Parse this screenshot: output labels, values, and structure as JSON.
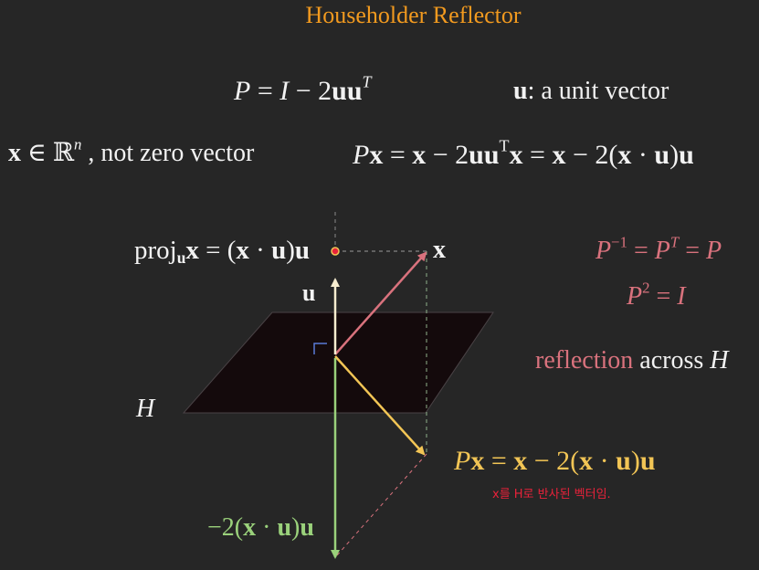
{
  "title": "Householder Reflector",
  "formula": {
    "P": "P",
    "eq_I": " = ",
    "I": "I",
    "minus_2": " − 2",
    "uu": "uu",
    "T": "T"
  },
  "unit_vector": {
    "u": "u",
    "text": ": a unit vector"
  },
  "x_in_rn": {
    "x": "x",
    "elem": " ∈ ",
    "Rn": "ℝ",
    "n": "n",
    "text": " , not zero vector"
  },
  "px_equation": {
    "P": "P",
    "x1": "x",
    "part1": " = ",
    "x2": "x",
    "part2": " − 2",
    "uu": "uu",
    "T": "T",
    "x3": "x",
    "part3": " = ",
    "x4": "x",
    "part4": " − 2(",
    "x5": "x",
    "dot": " · ",
    "u1": "u",
    "close": ")",
    "u2": "u"
  },
  "projection": {
    "proj": "proj",
    "sub_u": "u",
    "x": "x",
    "part1": " = (",
    "x2": "x",
    "dot": " · ",
    "u1": "u",
    "close": ")",
    "u2": "u"
  },
  "vector_labels": {
    "x": "x",
    "u": "u"
  },
  "properties": {
    "inverse": {
      "P1": "P",
      "exp1": "−1",
      "eq1": " = ",
      "P2": "P",
      "exp2": "T",
      "eq2": " = ",
      "P3": "P"
    },
    "square": {
      "P": "P",
      "exp": "2",
      "eq": " = ",
      "I": "I"
    }
  },
  "reflection_text": {
    "reflection": "reflection",
    "across": " across ",
    "H": "H"
  },
  "plane_label": "H",
  "reflected_label": {
    "P": "P",
    "x1": "x",
    "part1": " = ",
    "x2": "x",
    "part2": " − 2(",
    "x3": "x",
    "dot": " · ",
    "u1": "u",
    "close": ")",
    "u2": "u"
  },
  "note": "x를 H로 반사된 벡터임.",
  "neg_projection": {
    "prefix": "−2(",
    "x": "x",
    "dot": " · ",
    "u1": "u",
    "close": ")",
    "u2": "u"
  },
  "colors": {
    "title": "#f29a1f",
    "x_vector": "#d9727d",
    "u_vector": "#f7edd0",
    "reflected_vector": "#f2c555",
    "negative_projection": "#9ad17b",
    "note": "#e8223a",
    "plane_fill": "#140a0c",
    "right_angle": "#5a7bd6"
  }
}
